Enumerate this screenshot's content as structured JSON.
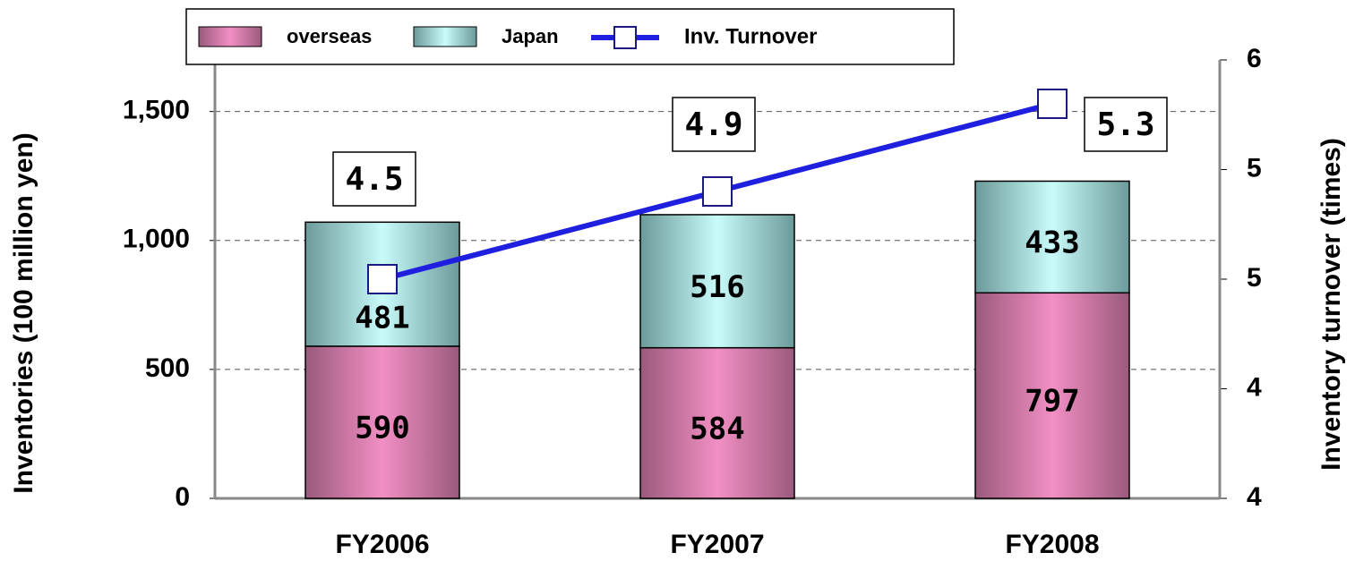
{
  "chart_data": {
    "type": "bar",
    "categories": [
      "FY2006",
      "FY2007",
      "FY2008"
    ],
    "ylabel": "Inventories (100 million yen)",
    "y2label": "Inventory turnover (times)",
    "ylim": [
      0,
      1700
    ],
    "yticks": [
      0,
      {
        "value": 500,
        "label": "500"
      },
      {
        "value": 1000,
        "label": "1,000"
      },
      {
        "value": 1500,
        "label": "1,500"
      }
    ],
    "y2lim": [
      3.5,
      5.5
    ],
    "y2ticks": [
      {
        "value": 3.5,
        "label": "4"
      },
      {
        "value": 4,
        "label": "4"
      },
      {
        "value": 4.5,
        "label": "5"
      },
      {
        "value": 5,
        "label": "5"
      },
      {
        "value": 5.5,
        "label": "6"
      }
    ],
    "grid": true,
    "series": [
      {
        "name": "overseas",
        "type": "bar",
        "color": "#f28fc4",
        "values": [
          590,
          584,
          797
        ]
      },
      {
        "name": "Japan",
        "type": "bar",
        "color": "#c8fbfa",
        "values": [
          481,
          516,
          433
        ]
      },
      {
        "name": "Inv. Turnover",
        "type": "line",
        "axis": "y2",
        "color": "#1f1fe0",
        "values": [
          4.5,
          4.9,
          5.3
        ]
      }
    ]
  }
}
